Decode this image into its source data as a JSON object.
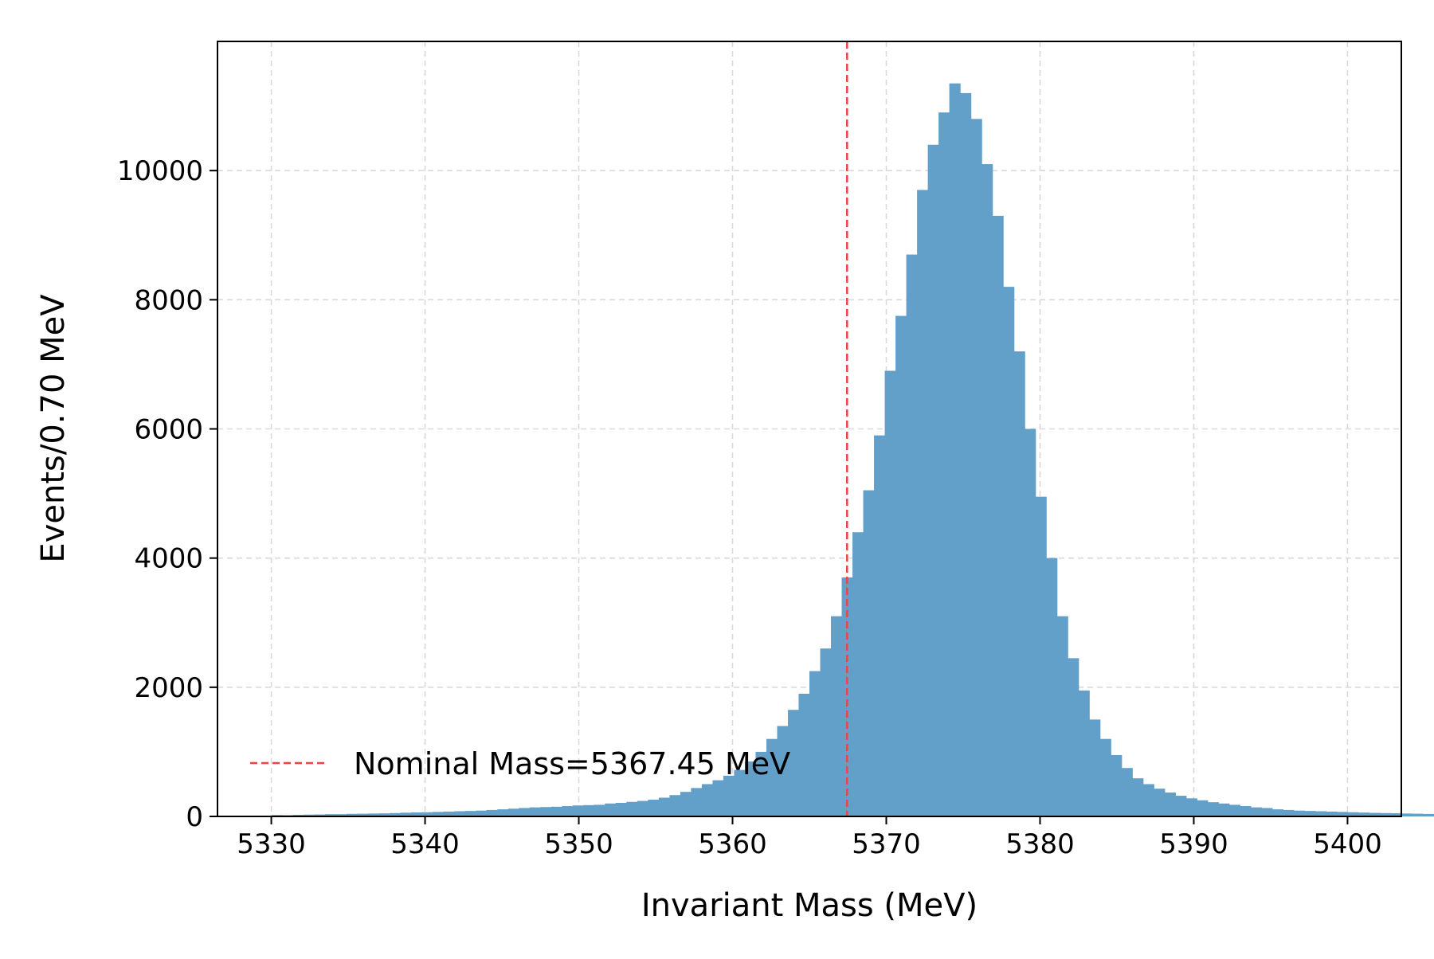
{
  "chart_data": {
    "type": "bar",
    "title": "",
    "xlabel": "Invariant Mass (MeV)",
    "ylabel": "Events/0.70 MeV",
    "xlim": [
      5326.5,
      5403.5
    ],
    "ylim": [
      0,
      12000
    ],
    "bin_start": 5330.0,
    "bin_width": 0.7,
    "grid": true,
    "legend_position": "lower-left",
    "colors": {
      "bars": "#62A0CA",
      "nominal_line": "#EE4444",
      "grid": "#d9d9d9",
      "axes": "#000000"
    },
    "x_ticks": [
      "5330",
      "5340",
      "5350",
      "5360",
      "5370",
      "5380",
      "5390",
      "5400"
    ],
    "y_ticks": [
      "0",
      "2000",
      "4000",
      "6000",
      "8000",
      "10000"
    ],
    "nominal_mass": 5367.45,
    "legend": {
      "entry": "Nominal Mass=5367.45 MeV"
    },
    "series": [
      {
        "values": [
          22,
          20,
          25,
          28,
          30,
          35,
          35,
          40,
          42,
          45,
          48,
          52,
          58,
          62,
          65,
          70,
          75,
          80,
          85,
          90,
          100,
          110,
          120,
          130,
          140,
          145,
          150,
          160,
          170,
          175,
          180,
          200,
          210,
          225,
          240,
          260,
          290,
          330,
          380,
          440,
          500,
          560,
          630,
          720,
          850,
          1000,
          1200,
          1400,
          1650,
          1900,
          2250,
          2600,
          3100,
          3700,
          4400,
          5050,
          5900,
          6900,
          7750,
          8700,
          9700,
          10400,
          10900,
          11350,
          11200,
          10800,
          10100,
          9300,
          8200,
          7200,
          6000,
          4950,
          4000,
          3100,
          2450,
          1950,
          1500,
          1200,
          950,
          750,
          590,
          500,
          430,
          370,
          320,
          280,
          250,
          220,
          200,
          180,
          160,
          140,
          130,
          110,
          100,
          90,
          85,
          80,
          75,
          70,
          65,
          60,
          55,
          52,
          50,
          45,
          42,
          38,
          35,
          32,
          30,
          28,
          25
        ]
      }
    ]
  }
}
